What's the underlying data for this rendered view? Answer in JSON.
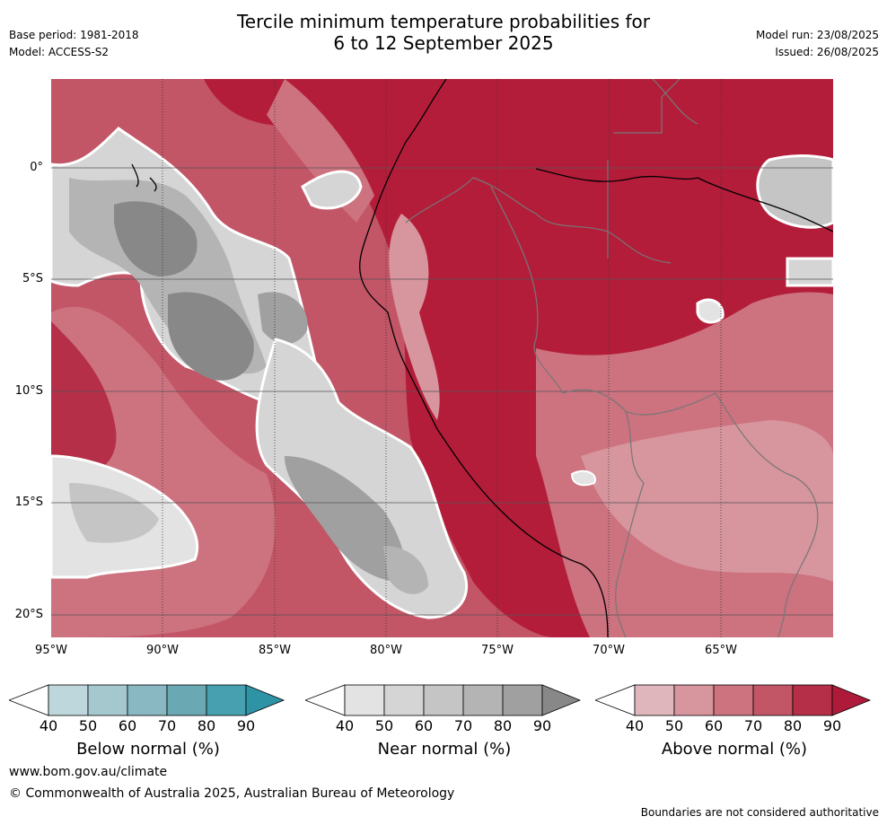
{
  "title": {
    "line1": "Tercile minimum temperature probabilities for",
    "line2": "6 to 12 September 2025"
  },
  "meta": {
    "base_period": "Base period: 1981-2018",
    "model": "Model: ACCESS-S2",
    "model_run": "Model run: 23/08/2025",
    "issued": "Issued: 26/08/2025"
  },
  "map": {
    "lat_labels": [
      "0°",
      "5°S",
      "10°S",
      "15°S",
      "20°S"
    ],
    "lon_labels": [
      "95°W",
      "90°W",
      "85°W",
      "80°W",
      "75°W",
      "70°W",
      "65°W"
    ]
  },
  "colorbars": [
    {
      "title": "Below normal (%)",
      "ticks": [
        "40",
        "50",
        "60",
        "70",
        "80",
        "90"
      ],
      "colors": [
        "#ffffff",
        "#bed7dc",
        "#a5c8cf",
        "#89b8c2",
        "#6aa8b3",
        "#47a0b0",
        "#2f93a6"
      ]
    },
    {
      "title": "Near normal (%)",
      "ticks": [
        "40",
        "50",
        "60",
        "70",
        "80",
        "90"
      ],
      "colors": [
        "#ffffff",
        "#e3e3e3",
        "#d5d5d5",
        "#c5c5c5",
        "#b4b4b4",
        "#a0a0a0",
        "#888888"
      ]
    },
    {
      "title": "Above normal (%)",
      "ticks": [
        "40",
        "50",
        "60",
        "70",
        "80",
        "90"
      ],
      "colors": [
        "#ffffff",
        "#dfb6bb",
        "#d7959d",
        "#cd727f",
        "#c25566",
        "#b52f48",
        "#b01a3a"
      ]
    }
  ],
  "footer": {
    "website": "www.bom.gov.au/climate",
    "copyright": "© Commonwealth of Australia 2025, Australian Bureau of Meteorology",
    "disclaimer": "Boundaries are not considered authoritative"
  }
}
